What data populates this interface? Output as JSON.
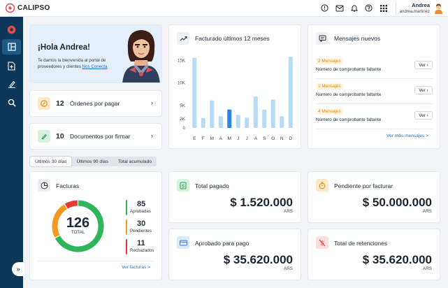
{
  "app": {
    "name": "CALIPSO"
  },
  "user": {
    "name": "Andrea",
    "email": "andrea.martinez"
  },
  "welcome": {
    "title": "¡Hola Andrea!",
    "text": "Te damos la bienvenida al portal de proveedores y clientes",
    "link": "Nos Conecta"
  },
  "stats": [
    {
      "count": "12",
      "label": "Órdenes por pagar"
    },
    {
      "count": "10",
      "label": "Documentos por firmar"
    }
  ],
  "billing_chart": {
    "title": "Facturado últimos 12 meses"
  },
  "chart_data": {
    "type": "bar",
    "title": "Facturado últimos 12 meses",
    "categories": [
      "E",
      "F",
      "M",
      "A",
      "M",
      "J",
      "J",
      "A",
      "S",
      "O",
      "N",
      "D"
    ],
    "values": [
      15600,
      2200,
      6100,
      2600,
      4100,
      2900,
      2300,
      7000,
      4100,
      6300,
      2600,
      15800
    ],
    "highlight_index": 4,
    "yticks": [
      "0",
      "2K",
      "5K",
      "10K",
      "15K"
    ],
    "ylim": [
      0,
      16000
    ],
    "colors": {
      "bar": "#b7dcf6",
      "highlight": "#2f86e0"
    }
  },
  "messages": {
    "title": "Mensajes nuevos",
    "items": [
      {
        "tag": "2 Mensajes",
        "text": "Número de comprobante faltante",
        "button": "Ver"
      },
      {
        "tag": "1 Mensajes",
        "text": "Número de comprobante faltante",
        "button": "Ver"
      },
      {
        "tag": "4 Mensajes",
        "text": "Número de comprobante faltante",
        "button": "Ver"
      }
    ],
    "more": "Ver más mensajes >"
  },
  "tabs": [
    "Últimos 30 días",
    "Últimos 90 días",
    "Total acumulado"
  ],
  "facturas": {
    "title": "Facturas",
    "total": "126",
    "total_label": "TOTAL",
    "legend": [
      {
        "count": "85",
        "label": "Aprobadas",
        "color": "#2fb55a",
        "value": 85
      },
      {
        "count": "30",
        "label": "Pendientes",
        "color": "#f29a1e",
        "value": 30
      },
      {
        "count": "11",
        "label": "Rechazados",
        "color": "#e53935",
        "value": 11
      }
    ],
    "link": "Ver facturas >"
  },
  "money": [
    {
      "title": "Total pagado",
      "amount": "$ 1.520.000",
      "currency": "ARS",
      "icon": "dollar-icon"
    },
    {
      "title": "Pendiente por facturar",
      "amount": "$ 50.000.000",
      "currency": "ARS",
      "icon": "timer-icon"
    },
    {
      "title": "Aprobado para pago",
      "amount": "$ 35.620.000",
      "currency": "ARS",
      "icon": "card-icon"
    },
    {
      "title": "Total de retenciones",
      "amount": "$ 35.620.000",
      "currency": "ARS",
      "icon": "no-dollar-icon"
    }
  ]
}
